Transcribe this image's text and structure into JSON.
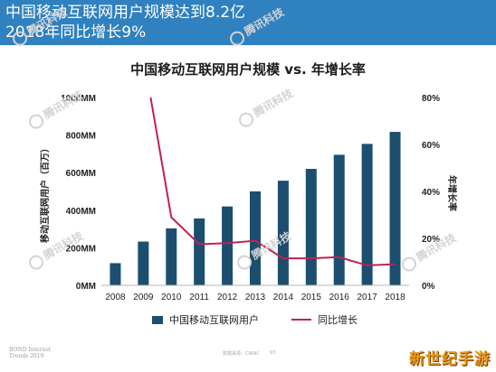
{
  "header": {
    "line1": "中国移动互联网用户规模达到8.2亿",
    "line2": "2018年同比增长9%"
  },
  "chart_data": {
    "type": "bar",
    "title": "中国移动互联网用户规模 vs. 年增长率",
    "categories": [
      "2008",
      "2009",
      "2010",
      "2011",
      "2012",
      "2013",
      "2014",
      "2015",
      "2016",
      "2017",
      "2018"
    ],
    "series": [
      {
        "name": "中国移动互联网用户",
        "type": "bar",
        "axis": "left",
        "color": "#1b4e6f",
        "values": [
          118,
          233,
          303,
          356,
          420,
          500,
          557,
          620,
          695,
          753,
          817
        ]
      },
      {
        "name": "同比增长",
        "type": "line",
        "axis": "right",
        "color": "#c1224f",
        "values": [
          null,
          98,
          29,
          17.5,
          18,
          19,
          11.5,
          11.5,
          12,
          8.5,
          9
        ]
      }
    ],
    "ylabel": "移动互联网用户（百万）",
    "y2label": "年增长率",
    "ylim": [
      0,
      1000
    ],
    "y2lim": [
      0,
      80
    ],
    "yticks": [
      "0MM",
      "200MM",
      "400MM",
      "600MM",
      "800MM",
      "1000MM"
    ],
    "y2ticks": [
      "0%",
      "20%",
      "40%",
      "60%",
      "80%"
    ],
    "grid": false,
    "legend": "bottom"
  },
  "legend": {
    "bar_label": "中国移动互联网用户",
    "line_label": "同比增长"
  },
  "watermark": {
    "text": "腾讯科技"
  },
  "footer": {
    "left": "BOND Internet Trends 2019",
    "center": "数据来源：CNNIC",
    "page": "93"
  },
  "corner_logo": "新世纪手游"
}
